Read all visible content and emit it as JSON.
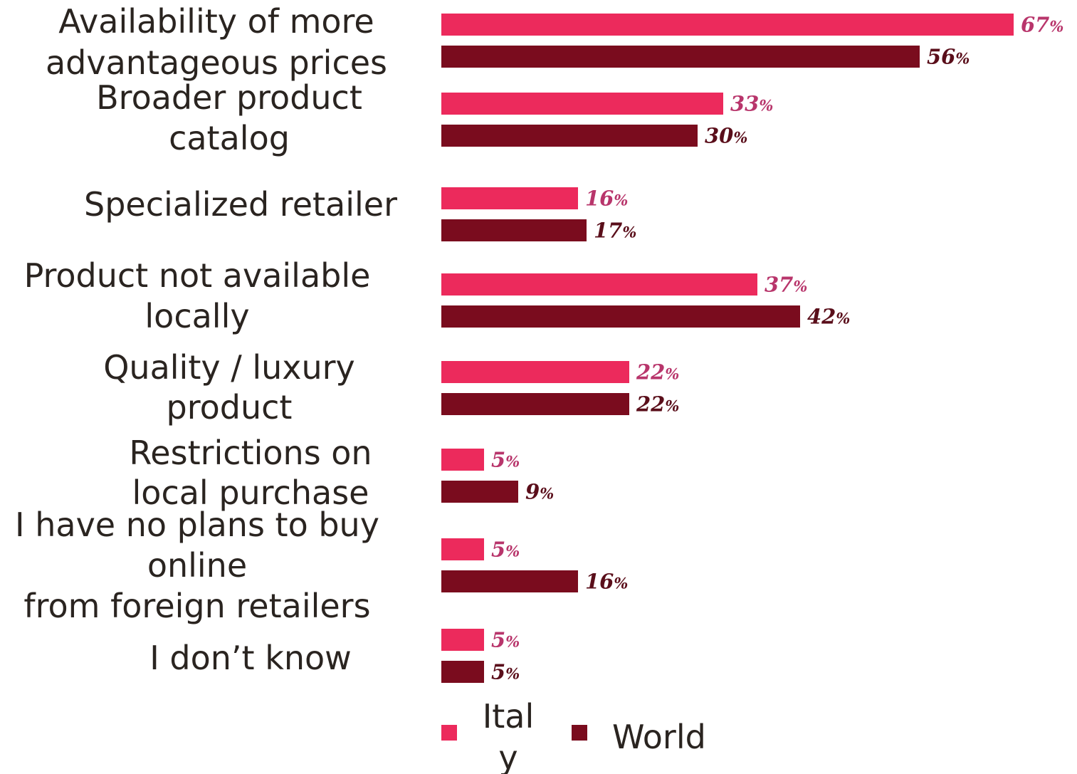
{
  "chart_data": {
    "type": "bar",
    "orientation": "horizontal",
    "categories": [
      [
        "Availability of more",
        "advantageous prices"
      ],
      [
        "Broader product",
        "catalog"
      ],
      [
        "Specialized retailer"
      ],
      [
        "Product not available",
        "locally"
      ],
      [
        "Quality / luxury",
        "product"
      ],
      [
        "Restrictions on",
        "local purchase"
      ],
      [
        "I have no plans to buy",
        "online",
        "from foreign retailers"
      ],
      [
        "I don’t know"
      ]
    ],
    "series": [
      {
        "name": "Italy",
        "color": "#ec2a5c",
        "values": [
          67,
          33,
          16,
          37,
          22,
          5,
          5,
          5
        ],
        "labels": [
          "67%",
          "33%",
          "16%",
          "37%",
          "22%",
          "5%",
          "5%",
          "5%"
        ]
      },
      {
        "name": "World",
        "color": "#7a0c1e",
        "values": [
          56,
          30,
          17,
          42,
          22,
          9,
          16,
          5
        ],
        "labels": [
          "56%",
          "30%",
          "17%",
          "42%",
          "22%",
          "9%",
          "16%",
          "5%"
        ]
      }
    ],
    "legend": {
      "position": "bottom",
      "italy_lines": [
        "Ital",
        "y"
      ],
      "world_lines": [
        "World"
      ]
    },
    "value_label_colors": {
      "Italy": "#b8356b",
      "World": "#5a0e1a"
    }
  }
}
